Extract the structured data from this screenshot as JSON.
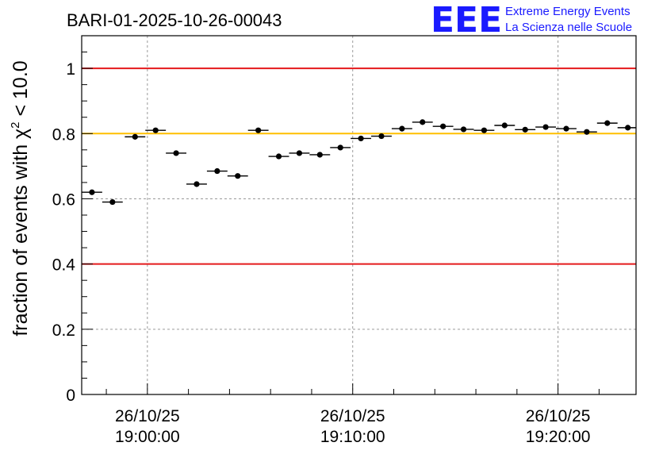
{
  "chart_data": {
    "type": "scatter",
    "title": "BARI-01-2025-10-26-00043",
    "ylabel_prefix": "fraction of events with ",
    "ylabel_symbol": "χ",
    "ylabel_exponent": "2",
    "ylabel_suffix": " < 10.0",
    "xlabel": "",
    "ylim": [
      0,
      1.1
    ],
    "xlim_minutes": [
      -3.2,
      23.8
    ],
    "y_ticks": [
      0,
      0.2,
      0.4,
      0.6,
      0.8,
      1
    ],
    "y_tick_labels": [
      "0",
      "0.2",
      "0.4",
      "0.6",
      "0.8",
      "1"
    ],
    "x_ticks_minutes": [
      0,
      10,
      20
    ],
    "x_tick_dates": [
      "26/10/25",
      "26/10/25",
      "26/10/25"
    ],
    "x_tick_times": [
      "19:00:00",
      "19:10:00",
      "19:20:00"
    ],
    "grid": true,
    "reference_lines": [
      {
        "name": "upper-limit",
        "y": 1.0,
        "color": "#e41a1c"
      },
      {
        "name": "target",
        "y": 0.8,
        "color": "#ffbf00"
      },
      {
        "name": "lower-limit",
        "y": 0.4,
        "color": "#e41a1c"
      }
    ],
    "bin_width_minutes": 1,
    "series": [
      {
        "name": "fraction",
        "x": [
          -2.7,
          -1.7,
          -0.6,
          0.4,
          1.4,
          2.4,
          3.4,
          4.4,
          5.4,
          6.4,
          7.4,
          8.4,
          9.4,
          10.4,
          11.4,
          12.4,
          13.4,
          14.4,
          15.4,
          16.4,
          17.4,
          18.4,
          19.4,
          20.4,
          21.4,
          22.4,
          23.4
        ],
        "values": [
          0.62,
          0.59,
          0.79,
          0.81,
          0.74,
          0.645,
          0.685,
          0.67,
          0.81,
          0.73,
          0.74,
          0.735,
          0.757,
          0.785,
          0.792,
          0.815,
          0.835,
          0.822,
          0.813,
          0.81,
          0.825,
          0.812,
          0.82,
          0.815,
          0.805,
          0.832,
          0.818
        ]
      }
    ]
  },
  "logo": {
    "mark": "EEE",
    "line1": "Extreme Energy Events",
    "line2": "La Scienza nelle Scuole",
    "color": "#1a1aff"
  }
}
